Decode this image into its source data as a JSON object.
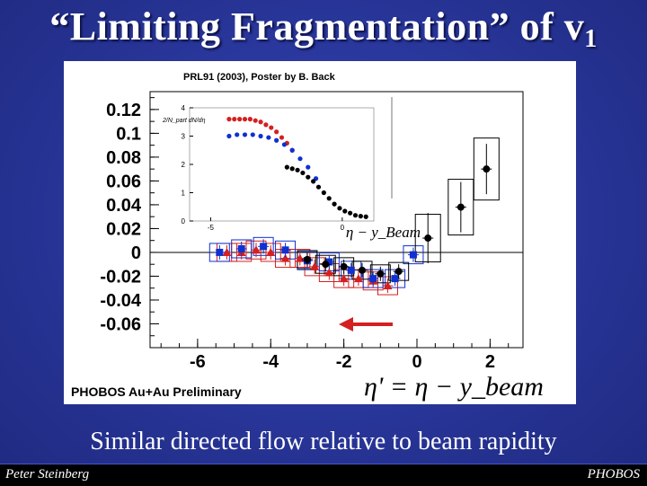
{
  "slide": {
    "title_main": "“Limiting Fragmentation” of v",
    "title_sub": "1",
    "caption": "Similar directed flow relative to beam rapidity",
    "footer_left": "Peter Steinberg",
    "footer_right": "PHOBOS"
  },
  "chart_data": [
    {
      "type": "scatter",
      "title": "",
      "annotations": [
        "PRL91 (2003), Poster by B. Back",
        "PHOBOS Au+Au Preliminary"
      ],
      "xlabel": "η' = η − y_beam",
      "ylabel": "",
      "xlim": [
        -7.3,
        2.9
      ],
      "ylim": [
        -0.08,
        0.135
      ],
      "x_ticks": [
        "-6",
        "-4",
        "-2",
        "0",
        "2"
      ],
      "y_ticks": [
        "0.12",
        "0.1",
        "0.08",
        "0.06",
        "0.04",
        "0.02",
        "0",
        "-0.02",
        "-0.04",
        "-0.06"
      ],
      "series": [
        {
          "color": "#d42020",
          "marker": "triangle",
          "x": [
            -5.2,
            -4.8,
            -4.4,
            -4.0,
            -3.6,
            -3.2,
            -2.8,
            -2.4,
            -2.0,
            -1.6,
            -1.2,
            -0.8
          ],
          "y": [
            0.0,
            0.0,
            0.002,
            0.0,
            -0.005,
            -0.005,
            -0.012,
            -0.017,
            -0.022,
            -0.022,
            -0.024,
            -0.028
          ]
        },
        {
          "color": "#1030d0",
          "marker": "square",
          "x": [
            -5.4,
            -4.8,
            -4.2,
            -3.6,
            -3.0,
            -2.4,
            -1.8,
            -1.2,
            -0.6,
            -0.1
          ],
          "y": [
            0.0,
            0.003,
            0.005,
            0.002,
            -0.007,
            -0.008,
            -0.015,
            -0.022,
            -0.022,
            -0.002
          ]
        },
        {
          "color": "#000000",
          "marker": "circle",
          "x": [
            -3.0,
            -2.5,
            -2.0,
            -1.5,
            -1.0,
            -0.5,
            0.3,
            1.2,
            1.9
          ],
          "y": [
            -0.006,
            -0.01,
            -0.012,
            -0.015,
            -0.018,
            -0.016,
            0.012,
            0.038,
            0.07
          ]
        }
      ],
      "inset": {
        "axis_label": "η − y_Beam",
        "y_label": "2/N_part dN/dη",
        "x_ticks": [
          "-5",
          "0"
        ],
        "y_ticks": [
          "0",
          "1",
          "2",
          "3",
          "4"
        ],
        "xlim": [
          -5.8,
          1.2
        ],
        "ylim": [
          0,
          4
        ],
        "series": [
          {
            "color": "#d42020",
            "marker": "circle",
            "x": [
              -4.3,
              -4.1,
              -3.9,
              -3.7,
              -3.5,
              -3.3,
              -3.1,
              -2.9,
              -2.7,
              -2.5,
              -2.3,
              -2.1,
              -1.9
            ],
            "y": [
              3.6,
              3.6,
              3.6,
              3.6,
              3.6,
              3.55,
              3.5,
              3.4,
              3.3,
              3.15,
              2.95,
              2.75,
              2.5
            ]
          },
          {
            "color": "#1030d0",
            "marker": "circle",
            "x": [
              -4.3,
              -4.0,
              -3.7,
              -3.4,
              -3.1,
              -2.8,
              -2.5,
              -2.2,
              -1.9,
              -1.6,
              -1.3,
              -1.0
            ],
            "y": [
              3.0,
              3.05,
              3.05,
              3.05,
              3.0,
              2.95,
              2.85,
              2.7,
              2.5,
              2.2,
              1.9,
              1.5
            ]
          },
          {
            "color": "#000000",
            "marker": "circle",
            "x": [
              -2.1,
              -1.9,
              -1.7,
              -1.5,
              -1.3,
              -1.1,
              -0.9,
              -0.7,
              -0.5,
              -0.3,
              -0.1,
              0.1,
              0.3,
              0.5,
              0.7,
              0.9
            ],
            "y": [
              1.9,
              1.85,
              1.8,
              1.7,
              1.55,
              1.4,
              1.2,
              1.0,
              0.8,
              0.6,
              0.45,
              0.35,
              0.28,
              0.2,
              0.17,
              0.15
            ]
          }
        ]
      }
    }
  ]
}
